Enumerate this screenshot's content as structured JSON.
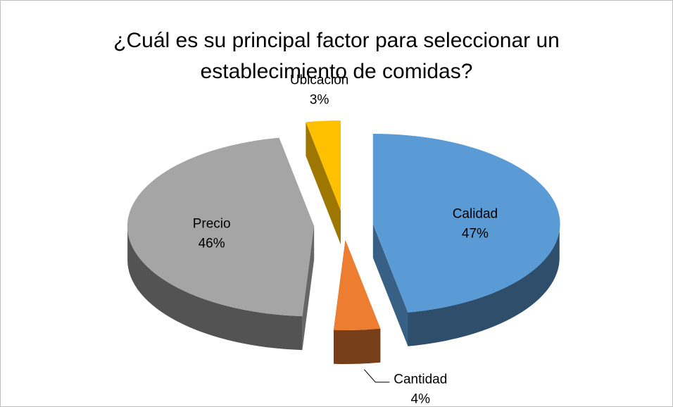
{
  "chart_data": {
    "type": "pie",
    "title": "¿Cuál es su principal factor para seleccionar un establecimiento de comidas?",
    "categories": [
      "Calidad",
      "Cantidad",
      "Precio",
      "Ubicación"
    ],
    "values": [
      47,
      4,
      46,
      3
    ],
    "value_labels": [
      "47%",
      "4%",
      "46%",
      "3%"
    ],
    "colors": [
      "#5b9bd5",
      "#ed7d31",
      "#a5a5a5",
      "#ffc000"
    ],
    "exploded": true,
    "three_d": true
  }
}
